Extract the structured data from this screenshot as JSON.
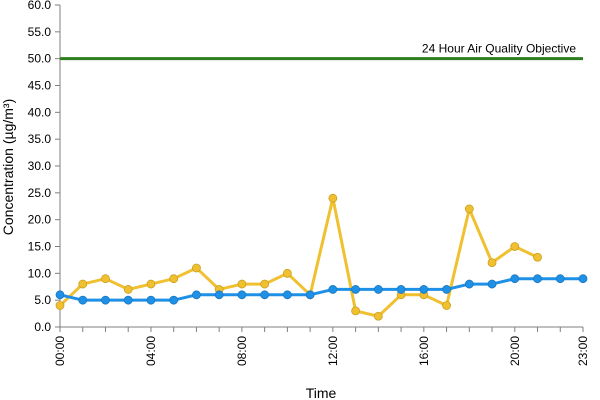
{
  "chart_data": {
    "type": "line",
    "title": "",
    "xlabel": "Time",
    "ylabel": "Concentration (µg/m³)",
    "ylim": [
      0,
      60
    ],
    "y_ticks": [
      "0.0",
      "5.0",
      "10.0",
      "15.0",
      "20.0",
      "25.0",
      "30.0",
      "35.0",
      "40.0",
      "45.0",
      "50.0",
      "55.0",
      "60.0"
    ],
    "x_ticks": [
      {
        "hour": 0,
        "label": "00:00"
      },
      {
        "hour": 4,
        "label": "04:00"
      },
      {
        "hour": 8,
        "label": "08:00"
      },
      {
        "hour": 12,
        "label": "12:00"
      },
      {
        "hour": 16,
        "label": "16:00"
      },
      {
        "hour": 20,
        "label": "20:00"
      },
      {
        "hour": 23,
        "label": "23:00"
      }
    ],
    "x": [
      0,
      1,
      2,
      3,
      4,
      5,
      6,
      7,
      8,
      9,
      10,
      11,
      12,
      13,
      14,
      15,
      16,
      17,
      18,
      19,
      20,
      21,
      22,
      23
    ],
    "grid": false,
    "series": [
      {
        "color": "#1e90e6",
        "values": [
          6,
          5,
          5,
          5,
          5,
          5,
          6,
          6,
          6,
          6,
          6,
          6,
          7,
          7,
          7,
          7,
          7,
          7,
          8,
          8,
          9,
          9,
          9,
          9
        ]
      },
      {
        "color": "#f0c030",
        "values": [
          4,
          8,
          9,
          7,
          8,
          9,
          11,
          7,
          8,
          8,
          10,
          6,
          24,
          3,
          2,
          6,
          6,
          4,
          22,
          12,
          15,
          13,
          null,
          null
        ]
      }
    ],
    "reference_line": {
      "value": 50,
      "label": "24 Hour Air Quality Objective",
      "color": "#2e7d1e"
    }
  }
}
